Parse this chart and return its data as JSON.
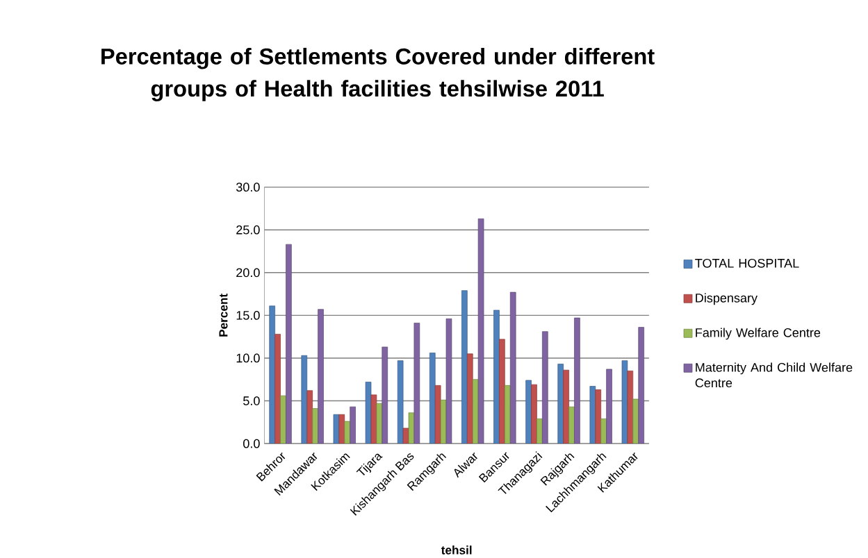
{
  "chart_data": {
    "type": "bar",
    "title": "Percentage of Settlements Covered under different groups of  Health facilities tehsilwise 2011",
    "xlabel": "tehsil",
    "ylabel": "Percent",
    "categories": [
      "Behror",
      "Mandawar",
      "Kotkasim",
      "Tijara",
      "Kishangarh Bas",
      "Ramgarh",
      "Alwar",
      "Bansur",
      "Thanagazi",
      "Rajgarh",
      "Lachhmangarh",
      "Kathumar"
    ],
    "series": [
      {
        "name": "TOTAL HOSPITAL",
        "color": "#4f81bd",
        "values": [
          16.1,
          10.3,
          3.4,
          7.2,
          9.7,
          10.6,
          17.9,
          15.6,
          7.4,
          9.3,
          6.7,
          9.7
        ]
      },
      {
        "name": "Dispensary",
        "color": "#c0504d",
        "values": [
          12.8,
          6.2,
          3.4,
          5.7,
          1.8,
          6.8,
          10.5,
          12.2,
          6.9,
          8.6,
          6.3,
          8.5
        ]
      },
      {
        "name": "Family Welfare Centre",
        "color": "#9bbb59",
        "values": [
          5.6,
          4.1,
          2.6,
          4.7,
          3.6,
          5.1,
          7.5,
          6.8,
          2.9,
          4.3,
          2.9,
          5.2
        ]
      },
      {
        "name": "Maternity And Child Welfare Centre",
        "color": "#8064a2",
        "values": [
          23.3,
          15.7,
          4.3,
          11.3,
          14.1,
          14.6,
          26.3,
          17.7,
          13.1,
          14.7,
          8.7,
          13.6
        ]
      }
    ],
    "ylim": [
      0,
      30
    ],
    "yticks": [
      {
        "value": 0,
        "label": "0.0"
      },
      {
        "value": 5,
        "label": "5.0"
      },
      {
        "value": 10,
        "label": "10.0"
      },
      {
        "value": 15,
        "label": "15.0"
      },
      {
        "value": 20,
        "label": "20.0"
      },
      {
        "value": 25,
        "label": "25.0"
      },
      {
        "value": 30,
        "label": "30.0"
      }
    ],
    "grid": "y",
    "legend": "right"
  }
}
